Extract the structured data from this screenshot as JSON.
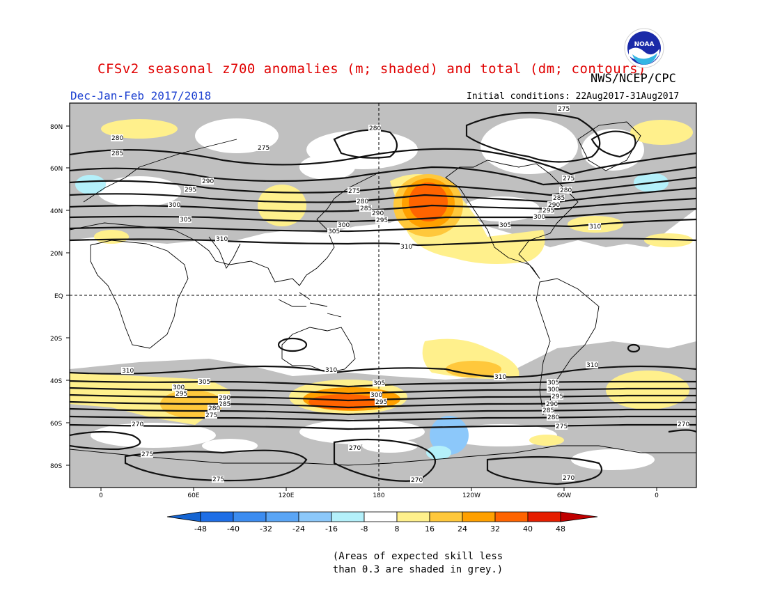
{
  "header": {
    "title": "CFSv2 seasonal z700 anomalies (m; shaded) and total (dm; contours)",
    "agency": "NWS/NCEP/CPC",
    "period": "Dec-Jan-Feb 2017/2018",
    "initial_conditions": "Initial conditions: 22Aug2017-31Aug2017",
    "logo_text": "NOAA"
  },
  "map": {
    "lat_labels": [
      "80N",
      "60N",
      "40N",
      "20N",
      "EQ",
      "20S",
      "40S",
      "60S",
      "80S"
    ],
    "lon_labels": [
      "0",
      "60E",
      "120E",
      "180",
      "120W",
      "60W",
      "0"
    ],
    "contour_labels": [
      "275",
      "280",
      "285",
      "290",
      "295",
      "300",
      "305",
      "310",
      "270"
    ]
  },
  "colorbar": {
    "ticks": [
      "-48",
      "-40",
      "-32",
      "-24",
      "-16",
      "-8",
      "8",
      "16",
      "24",
      "32",
      "40",
      "48"
    ],
    "colors": [
      "#1464d2",
      "#1e6ee6",
      "#3c8cf0",
      "#5aa5f5",
      "#8cc8fa",
      "#b4f0fa",
      "#ffffff",
      "#fff08c",
      "#ffc83c",
      "#ffa000",
      "#ff6400",
      "#e61e00",
      "#c00000"
    ]
  },
  "footnote": {
    "line1": "(Areas of expected skill less",
    "line2": "than 0.3 are shaded in grey.)"
  }
}
